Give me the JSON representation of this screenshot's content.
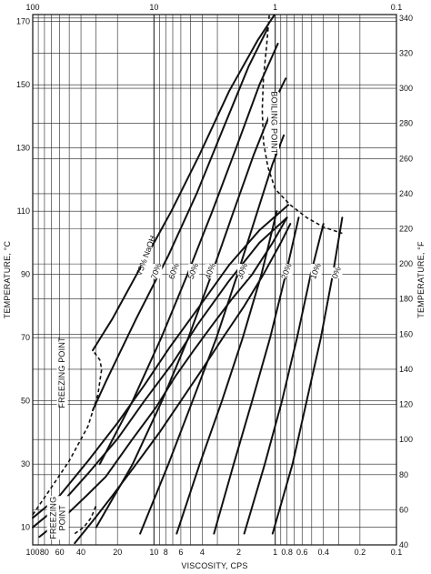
{
  "chart_data": {
    "type": "line",
    "x_scale": "log",
    "x_reversed": true,
    "xlim": [
      100,
      0.1
    ],
    "ylim_c": [
      4.44,
      172.22
    ],
    "xlabel": "VISCOSITY, CPS",
    "ylabel_left": "TEMPERATURE, °C",
    "ylabel_right": "TEMPERATURE, °F",
    "grid": true,
    "top_ticks": [
      {
        "value": 100,
        "label": "100"
      },
      {
        "value": 10,
        "label": "10"
      },
      {
        "value": 1,
        "label": "1"
      },
      {
        "value": 0.1,
        "label": "0.1"
      }
    ],
    "bottom_ticks": [
      {
        "value": 100,
        "label": "100"
      },
      {
        "value": 80,
        "label": "80"
      },
      {
        "value": 60,
        "label": "60"
      },
      {
        "value": 40,
        "label": "40"
      },
      {
        "value": 20,
        "label": "20"
      },
      {
        "value": 10,
        "label": "10"
      },
      {
        "value": 8,
        "label": "8"
      },
      {
        "value": 6,
        "label": "6"
      },
      {
        "value": 4,
        "label": "4"
      },
      {
        "value": 2,
        "label": "2"
      },
      {
        "value": 1,
        "label": "1"
      },
      {
        "value": 0.8,
        "label": "0.8"
      },
      {
        "value": 0.6,
        "label": "0.6"
      },
      {
        "value": 0.4,
        "label": "0.4"
      },
      {
        "value": 0.2,
        "label": "0.2"
      },
      {
        "value": 0.1,
        "label": "0.1"
      }
    ],
    "x_minor_gridlines": [
      90,
      70,
      50,
      30,
      9,
      7,
      5,
      3,
      0.9,
      0.7,
      0.5,
      0.3
    ],
    "left_ticks_c": [
      10,
      30,
      50,
      70,
      90,
      110,
      130,
      150,
      170
    ],
    "right_ticks_f": [
      40,
      60,
      80,
      100,
      120,
      140,
      160,
      180,
      200,
      220,
      240,
      260,
      280,
      300,
      320,
      340
    ],
    "series": [
      {
        "name": "0%",
        "label_at": {
          "x": 0.31,
          "y": 90.5
        },
        "points": [
          [
            1.05,
            8
          ],
          [
            0.72,
            30
          ],
          [
            0.55,
            50
          ],
          [
            0.42,
            70
          ],
          [
            0.335,
            90
          ],
          [
            0.28,
            108
          ]
        ]
      },
      {
        "name": "10%",
        "label_at": {
          "x": 0.46,
          "y": 91
        },
        "points": [
          [
            1.8,
            8
          ],
          [
            1.22,
            30
          ],
          [
            0.88,
            50
          ],
          [
            0.66,
            70
          ],
          [
            0.51,
            90
          ],
          [
            0.4,
            106
          ]
        ]
      },
      {
        "name": "20%",
        "label_at": {
          "x": 0.8,
          "y": 91
        },
        "points": [
          [
            3.2,
            8
          ],
          [
            2.2,
            30
          ],
          [
            1.55,
            50
          ],
          [
            1.1,
            70
          ],
          [
            0.82,
            90
          ],
          [
            0.64,
            108
          ]
        ]
      },
      {
        "name": "30%",
        "label_at": {
          "x": 1.85,
          "y": 91
        },
        "points": [
          [
            6.5,
            8
          ],
          [
            4.2,
            30
          ],
          [
            2.75,
            50
          ],
          [
            1.85,
            70
          ],
          [
            1.3,
            90
          ],
          [
            0.97,
            110
          ]
        ]
      },
      {
        "name": "40%",
        "label_at": {
          "x": 3.4,
          "y": 91
        },
        "points": [
          [
            13,
            8
          ],
          [
            7.6,
            30
          ],
          [
            4.8,
            50
          ],
          [
            3.05,
            70
          ],
          [
            2.05,
            90
          ],
          [
            1.4,
            110
          ],
          [
            1.05,
            125
          ],
          [
            0.85,
            134
          ]
        ]
      },
      {
        "name": "50%",
        "label_at": {
          "x": 4.7,
          "y": 91
        },
        "points": [
          [
            30,
            10
          ],
          [
            15,
            30
          ],
          [
            8.6,
            50
          ],
          [
            5.2,
            70
          ],
          [
            3.35,
            90
          ],
          [
            2.2,
            110
          ],
          [
            1.5,
            128
          ],
          [
            0.95,
            147
          ],
          [
            0.82,
            152
          ]
        ]
      },
      {
        "name": "60%",
        "label_at": {
          "x": 6.8,
          "y": 91
        },
        "points": [
          [
            28,
            30
          ],
          [
            15,
            50
          ],
          [
            8.7,
            70
          ],
          [
            5.3,
            90
          ],
          [
            3.3,
            110
          ],
          [
            2.1,
            130
          ],
          [
            1.35,
            150
          ],
          [
            0.95,
            163
          ]
        ]
      },
      {
        "name": "70%",
        "label_at": {
          "x": 9.5,
          "y": 91
        },
        "points": [
          [
            32,
            47
          ],
          [
            25,
            56
          ],
          [
            14,
            76
          ],
          [
            7.6,
            96
          ],
          [
            4.4,
            116
          ],
          [
            2.7,
            136
          ],
          [
            1.65,
            156
          ],
          [
            1.15,
            168
          ]
        ]
      },
      {
        "name": "75% NaOH",
        "label_at": {
          "x": 11.5,
          "y": 96
        },
        "points": [
          [
            32,
            66
          ],
          [
            22,
            76
          ],
          [
            13,
            92
          ],
          [
            7.2,
            110
          ],
          [
            4.2,
            128
          ],
          [
            2.4,
            148
          ],
          [
            1.4,
            164
          ],
          [
            1.02,
            172
          ]
        ]
      }
    ],
    "extra_lines": [
      {
        "points": [
          [
            100,
            13
          ],
          [
            60,
            20
          ],
          [
            35,
            31
          ],
          [
            20,
            43
          ],
          [
            12,
            55
          ],
          [
            7.4,
            67
          ],
          [
            4.2,
            80
          ],
          [
            2.4,
            93
          ],
          [
            1.35,
            104
          ],
          [
            0.78,
            112
          ]
        ]
      },
      {
        "points": [
          [
            100,
            10
          ],
          [
            60,
            17
          ],
          [
            35,
            27
          ],
          [
            20,
            38
          ],
          [
            12,
            50
          ],
          [
            7,
            62
          ],
          [
            4.4,
            74
          ],
          [
            2.4,
            88
          ],
          [
            1.35,
            100
          ],
          [
            0.8,
            108
          ]
        ]
      },
      {
        "points": [
          [
            88,
            7
          ],
          [
            56,
            13
          ],
          [
            36,
            20
          ],
          [
            25,
            26
          ],
          [
            15,
            38
          ],
          [
            9.6,
            48
          ],
          [
            6.6,
            58
          ],
          [
            4.7,
            66
          ],
          [
            3.3,
            74
          ],
          [
            2.3,
            82
          ],
          [
            1.55,
            90
          ],
          [
            1.05,
            100
          ],
          [
            0.8,
            108
          ]
        ]
      },
      {
        "points": [
          [
            45,
            5
          ],
          [
            32,
            12
          ],
          [
            22,
            20
          ],
          [
            14,
            30
          ],
          [
            9,
            40
          ],
          [
            6,
            50
          ],
          [
            4,
            60
          ],
          [
            2.7,
            70
          ],
          [
            1.8,
            80
          ],
          [
            1.25,
            90
          ],
          [
            0.9,
            100
          ],
          [
            0.75,
            106
          ]
        ]
      }
    ],
    "boiling_point": {
      "label": "BOILING POINT",
      "points": [
        [
          1.12,
          172
        ],
        [
          1.18,
          162
        ],
        [
          1.25,
          152
        ],
        [
          1.28,
          142
        ],
        [
          1.25,
          132
        ],
        [
          1.15,
          124
        ],
        [
          1.0,
          117
        ],
        [
          0.75,
          112
        ],
        [
          0.55,
          108
        ],
        [
          0.4,
          105
        ],
        [
          0.28,
          103
        ]
      ]
    },
    "freezing_point_upper": {
      "label": "FREEZING POINT",
      "points": [
        [
          100,
          14
        ],
        [
          75,
          21
        ],
        [
          50,
          31
        ],
        [
          35,
          42
        ],
        [
          29,
          52
        ],
        [
          27,
          60
        ],
        [
          28,
          63
        ],
        [
          32,
          66
        ]
      ]
    },
    "freezing_point_lower": {
      "label": "FREEZING POINT",
      "points": [
        [
          45,
          8
        ],
        [
          38,
          10
        ],
        [
          33,
          13
        ],
        [
          30,
          17
        ]
      ]
    }
  }
}
